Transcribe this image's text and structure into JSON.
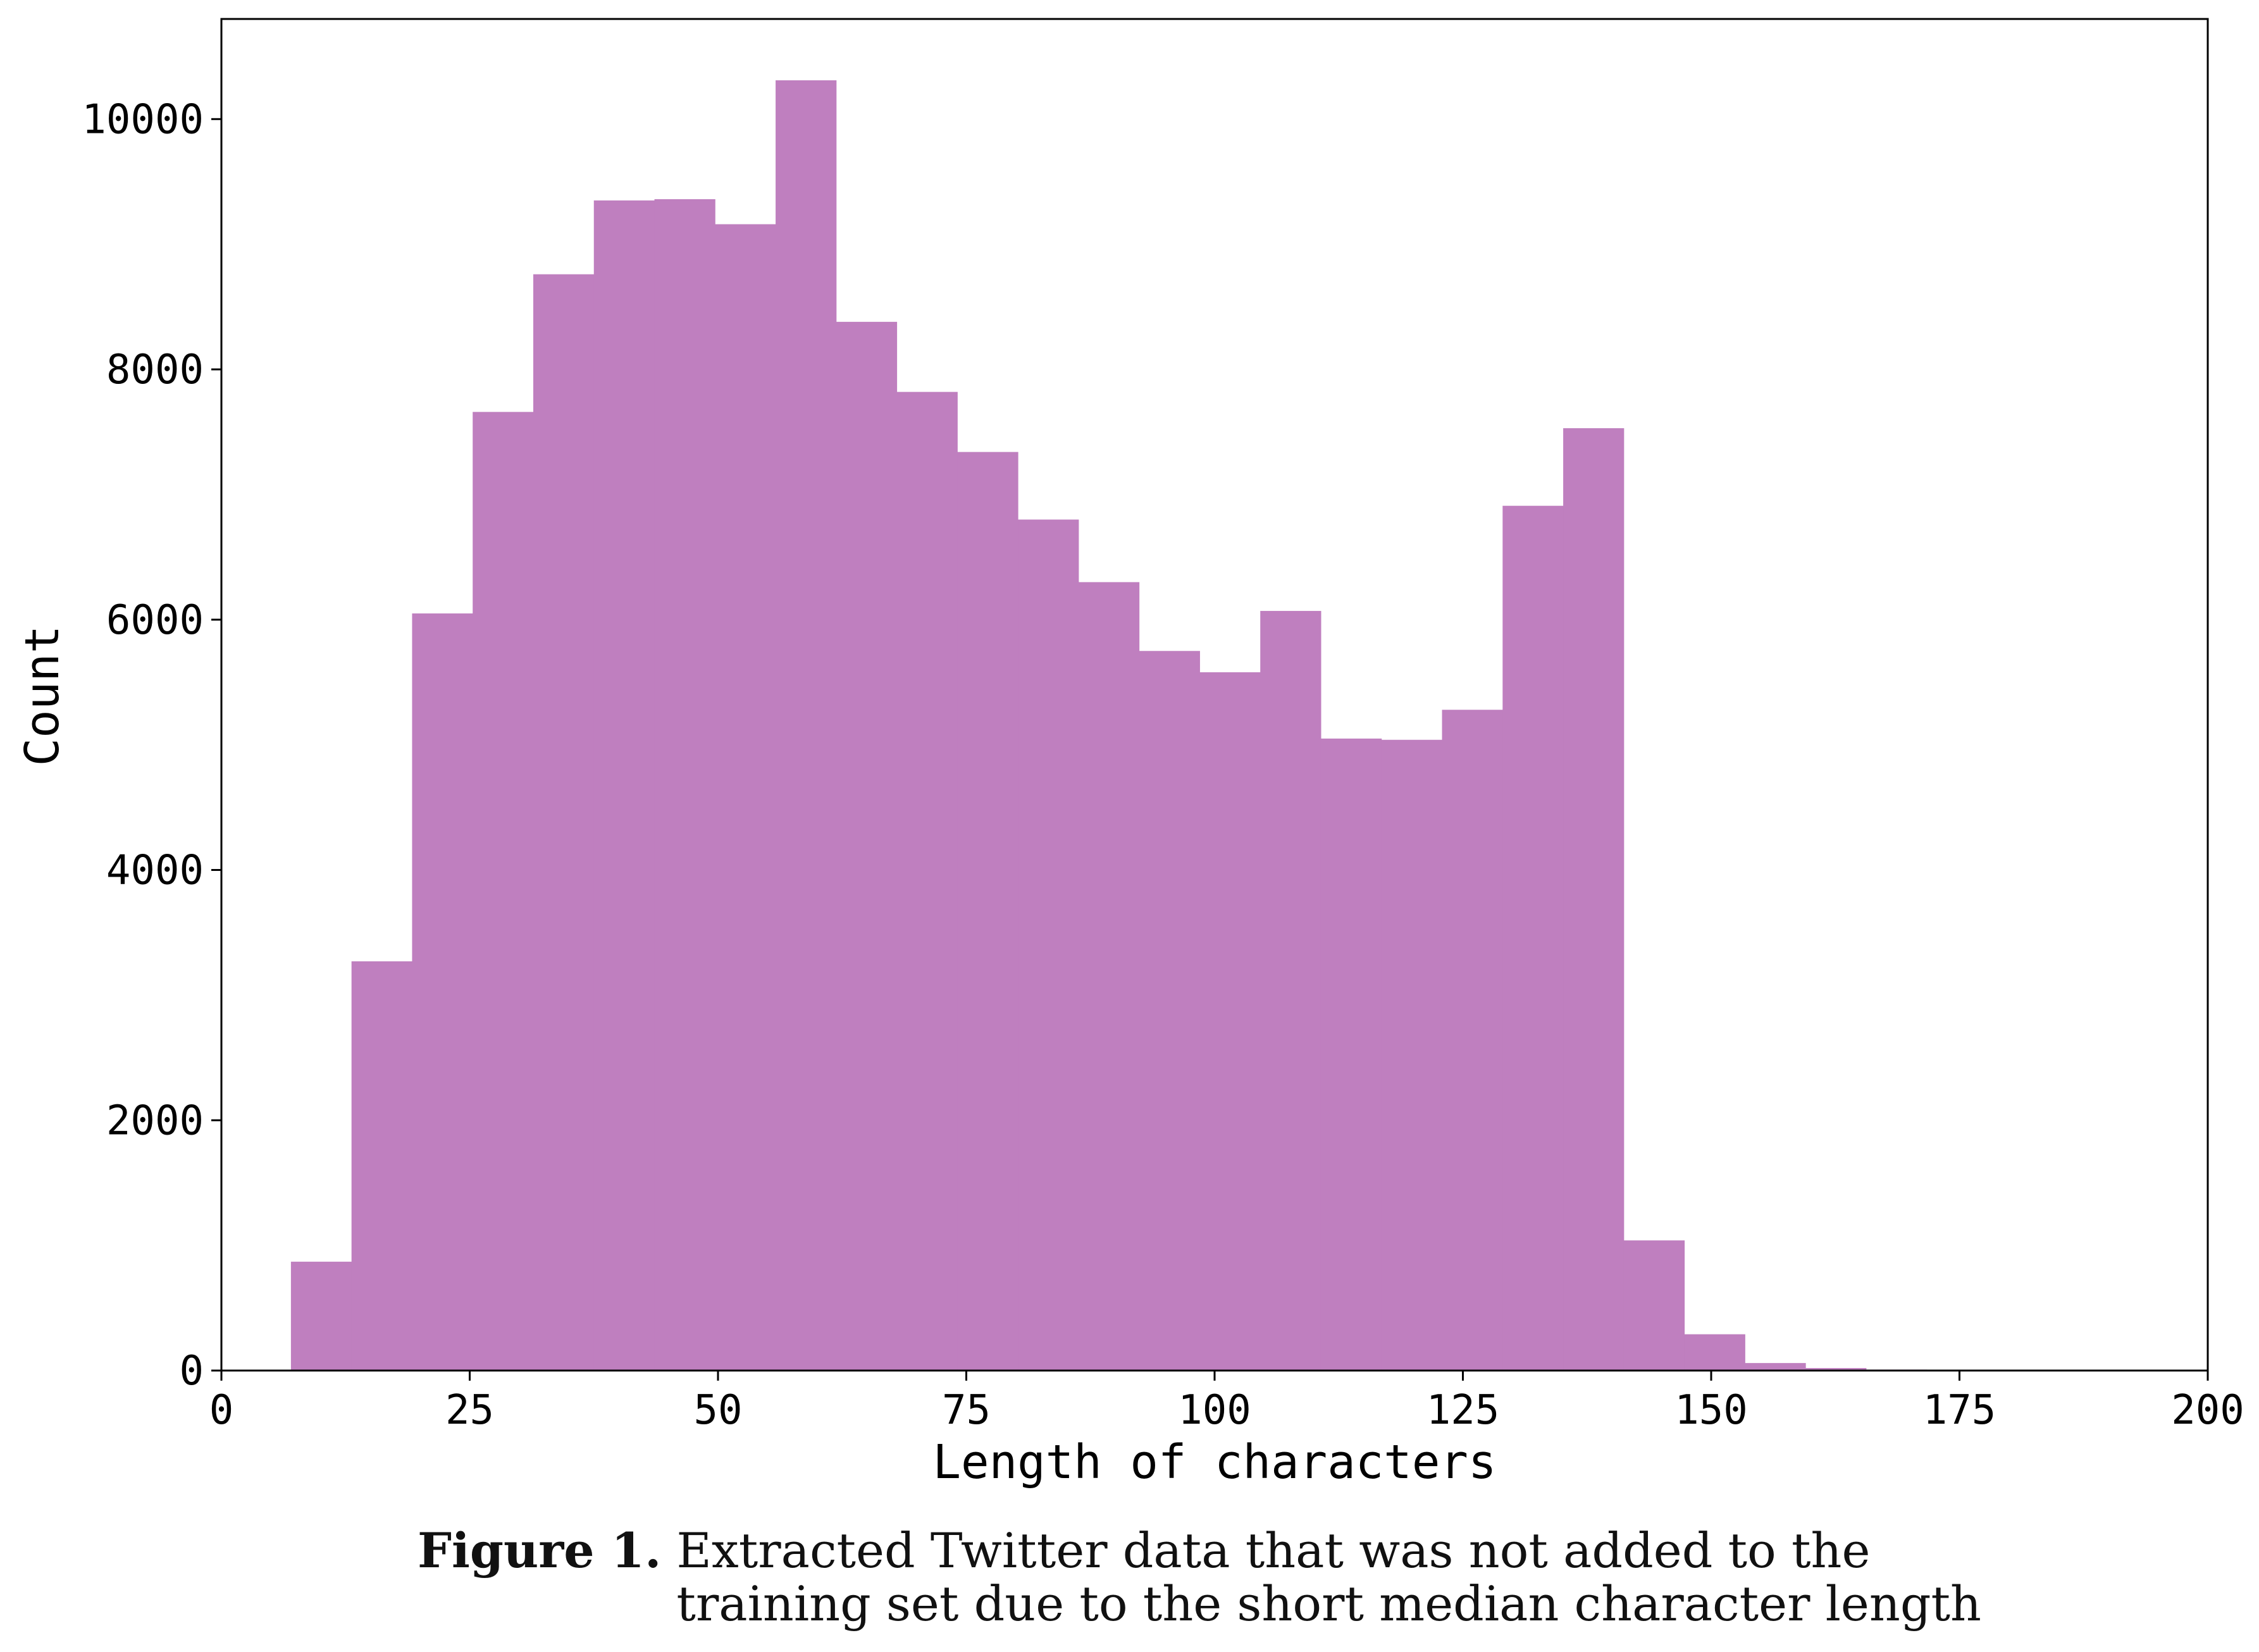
{
  "chart_data": {
    "type": "bar",
    "histogram": true,
    "bin_edges": [
      7,
      13.1,
      19.2,
      25.3,
      31.4,
      37.5,
      43.6,
      49.7,
      55.8,
      61.9,
      68,
      74.1,
      80.2,
      86.3,
      92.4,
      98.5,
      104.6,
      110.7,
      116.8,
      122.9,
      129,
      135.1,
      141.2,
      147.3,
      153.4,
      159.5,
      165.6,
      171.7
    ],
    "values": [
      870,
      3270,
      6050,
      7660,
      8760,
      9350,
      9360,
      9160,
      10310,
      8380,
      7820,
      7340,
      6800,
      6300,
      5750,
      5580,
      6070,
      5050,
      5040,
      5280,
      6910,
      7530,
      1040,
      290,
      60,
      20,
      8
    ],
    "xlabel": "Length of characters",
    "ylabel": "Count",
    "xlim": [
      0,
      200
    ],
    "ylim": [
      0,
      10800
    ],
    "xticks": [
      0,
      25,
      50,
      75,
      100,
      125,
      150,
      175,
      200
    ],
    "yticks": [
      0,
      2000,
      4000,
      6000,
      8000,
      10000
    ],
    "grid": false,
    "bar_color": "#bf7fbf"
  },
  "caption": {
    "label": "Figure 1.",
    "line1": "Extracted Twitter data that was not added to the",
    "line2": "training set due to the short median character length"
  }
}
